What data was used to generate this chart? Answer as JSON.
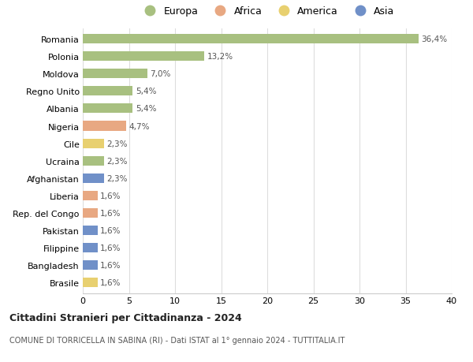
{
  "categories": [
    "Romania",
    "Polonia",
    "Moldova",
    "Regno Unito",
    "Albania",
    "Nigeria",
    "Cile",
    "Ucraina",
    "Afghanistan",
    "Liberia",
    "Rep. del Congo",
    "Pakistan",
    "Filippine",
    "Bangladesh",
    "Brasile"
  ],
  "values": [
    36.4,
    13.2,
    7.0,
    5.4,
    5.4,
    4.7,
    2.3,
    2.3,
    2.3,
    1.6,
    1.6,
    1.6,
    1.6,
    1.6,
    1.6
  ],
  "labels": [
    "36,4%",
    "13,2%",
    "7,0%",
    "5,4%",
    "5,4%",
    "4,7%",
    "2,3%",
    "2,3%",
    "2,3%",
    "1,6%",
    "1,6%",
    "1,6%",
    "1,6%",
    "1,6%",
    "1,6%"
  ],
  "continents": [
    "Europa",
    "Europa",
    "Europa",
    "Europa",
    "Europa",
    "Africa",
    "America",
    "Europa",
    "Asia",
    "Africa",
    "Africa",
    "Asia",
    "Asia",
    "Asia",
    "America"
  ],
  "continent_colors": {
    "Europa": "#a8c080",
    "Africa": "#e8a882",
    "America": "#e8d070",
    "Asia": "#7090c8"
  },
  "legend_entries": [
    "Europa",
    "Africa",
    "America",
    "Asia"
  ],
  "xlim": [
    0,
    40
  ],
  "xticks": [
    0,
    5,
    10,
    15,
    20,
    25,
    30,
    35,
    40
  ],
  "title": "Cittadini Stranieri per Cittadinanza - 2024",
  "subtitle": "COMUNE DI TORRICELLA IN SABINA (RI) - Dati ISTAT al 1° gennaio 2024 - TUTTITALIA.IT",
  "background_color": "#ffffff",
  "grid_color": "#dddddd",
  "bar_height": 0.55
}
